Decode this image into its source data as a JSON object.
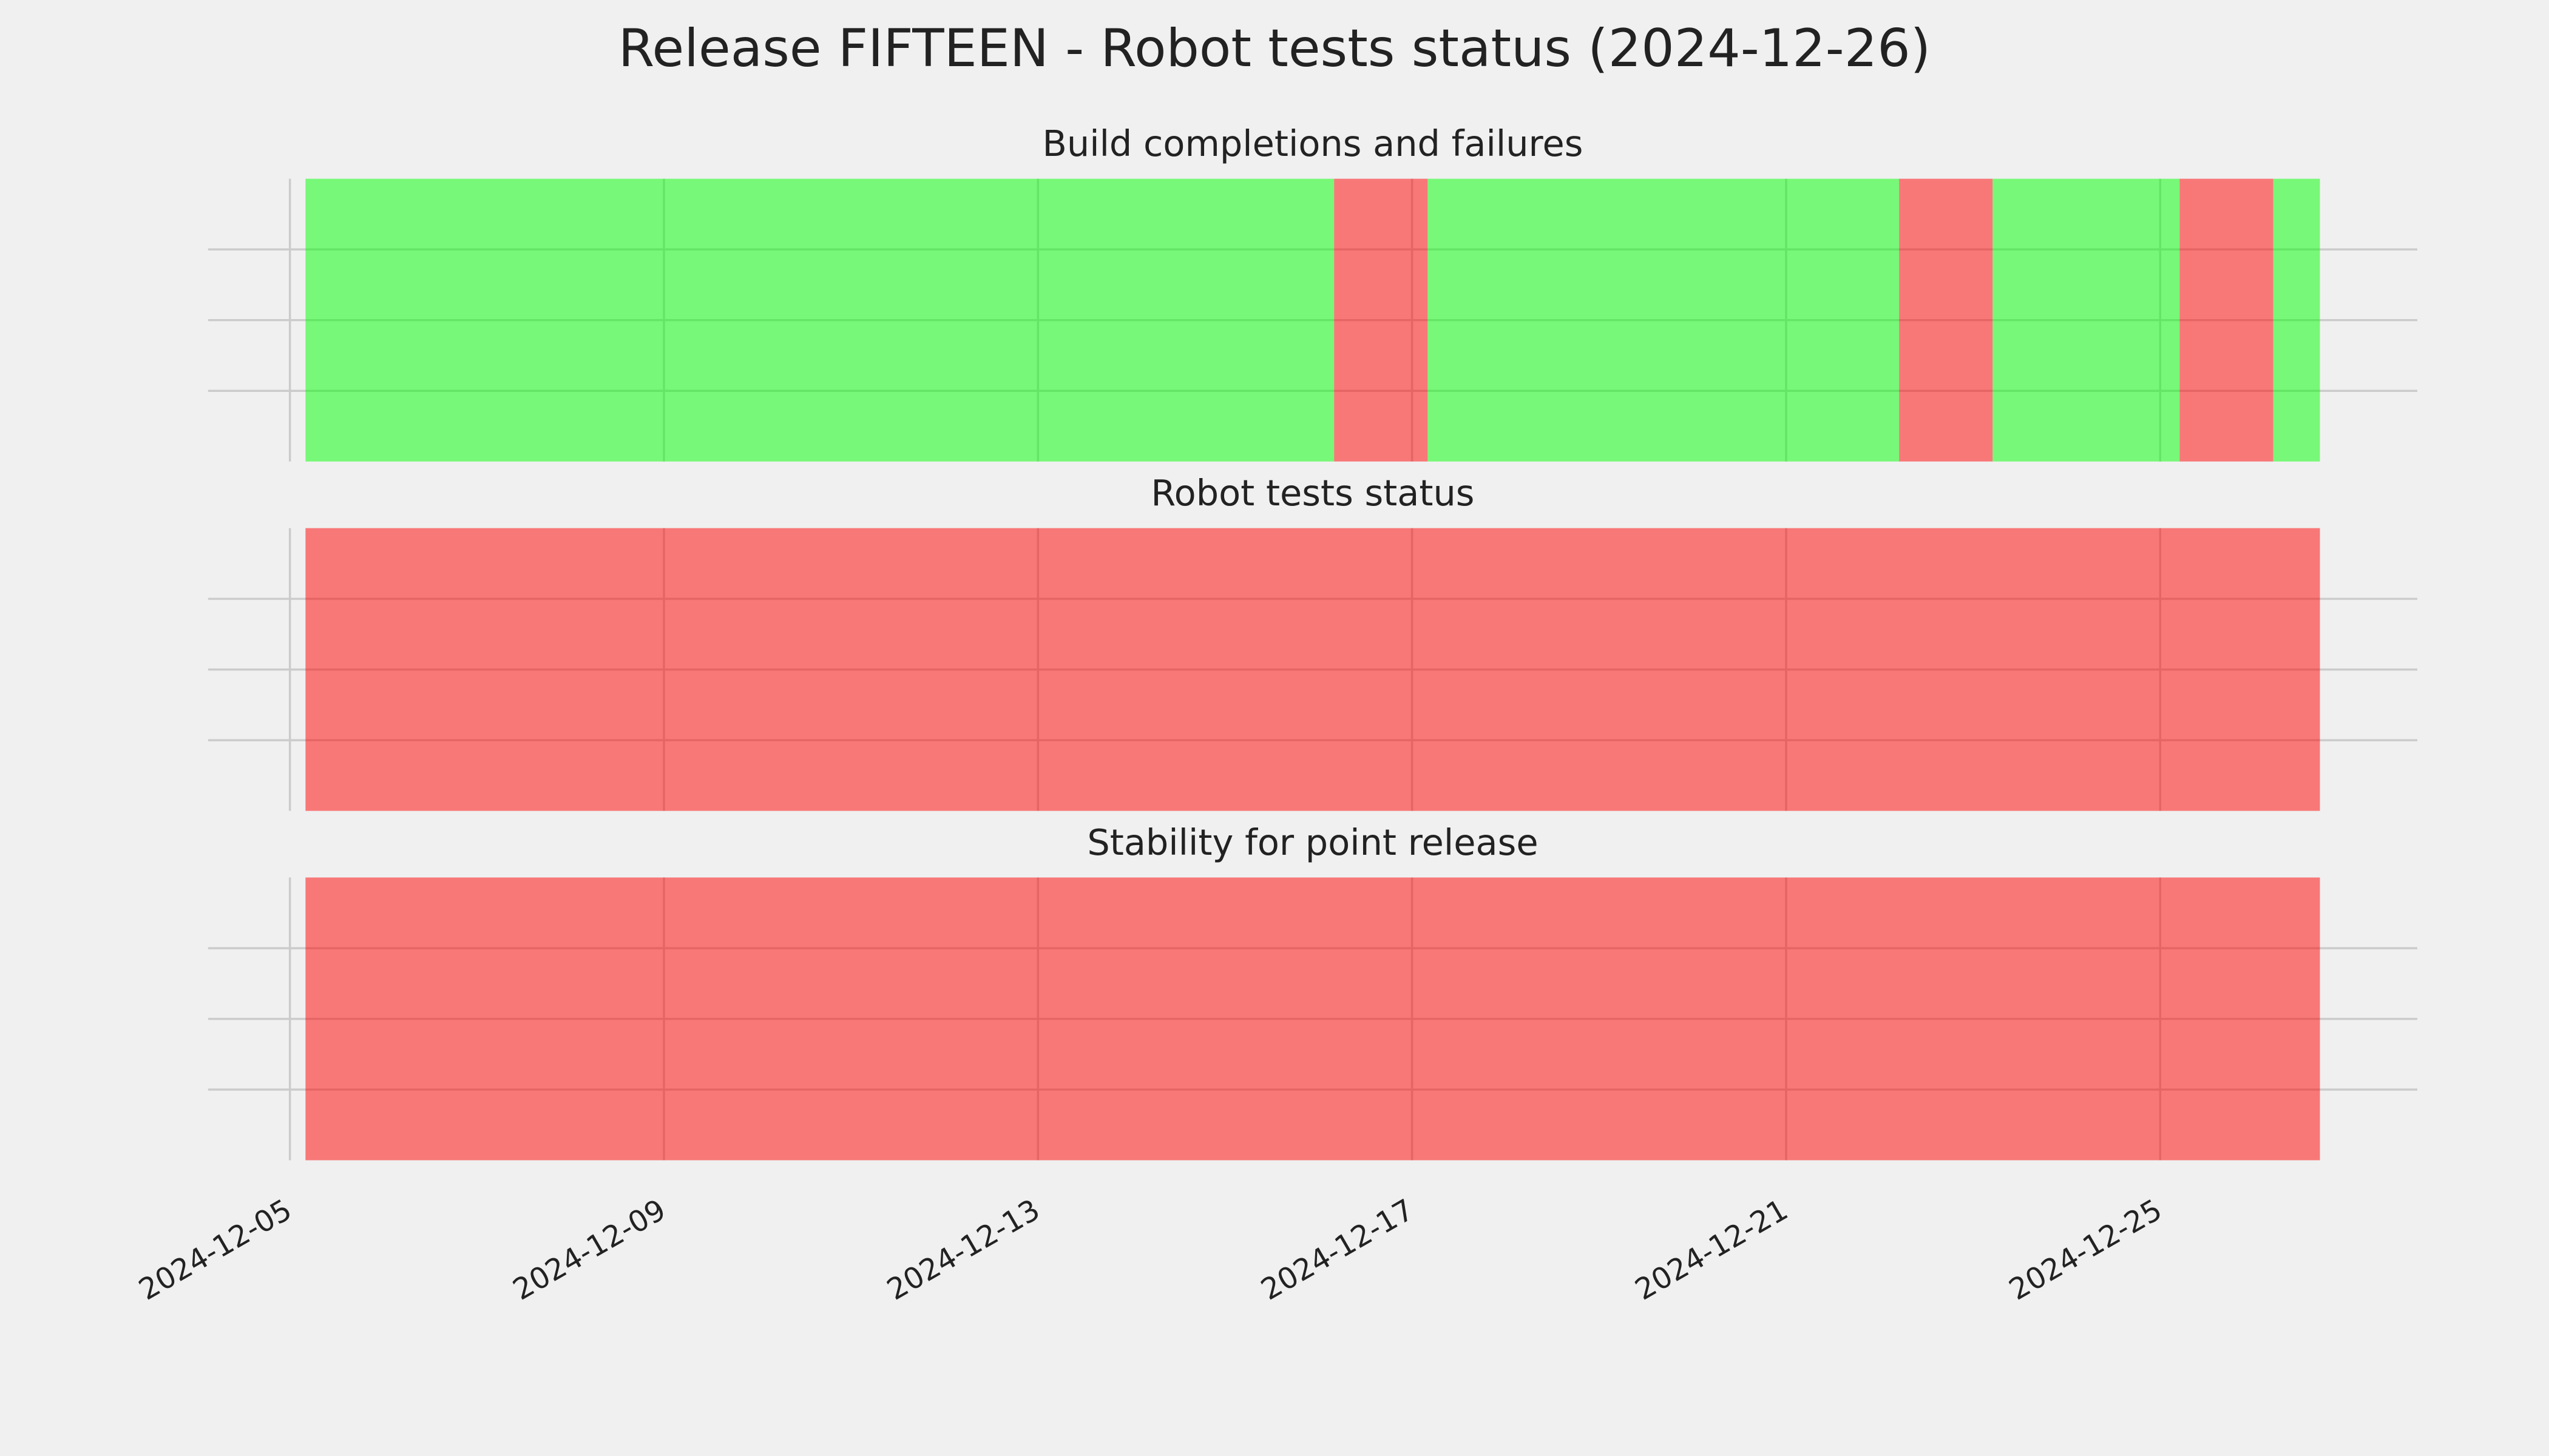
{
  "title": "Release FIFTEEN - Robot tests status (2024-12-26)",
  "chart_data": [
    {
      "type": "timeline",
      "title": "Build completions and failures",
      "xlim": [
        "2024-12-04T03:00",
        "2024-12-27T18:00"
      ],
      "xticks": [
        "2024-12-05",
        "2024-12-09",
        "2024-12-13",
        "2024-12-17",
        "2024-12-21",
        "2024-12-25"
      ],
      "ylim": [
        0,
        1
      ],
      "yticks": [
        0.25,
        0.5,
        0.75
      ],
      "grid": true,
      "alpha": 0.5,
      "spans": [
        {
          "start": "2024-12-05T04:00",
          "end": "2024-12-16T04:00",
          "color": "#00ff00"
        },
        {
          "start": "2024-12-16T04:00",
          "end": "2024-12-17T04:00",
          "color": "#ff0000"
        },
        {
          "start": "2024-12-17T04:00",
          "end": "2024-12-22T05:00",
          "color": "#00ff00"
        },
        {
          "start": "2024-12-22T05:00",
          "end": "2024-12-23T05:00",
          "color": "#ff0000"
        },
        {
          "start": "2024-12-23T05:00",
          "end": "2024-12-25T05:00",
          "color": "#00ff00"
        },
        {
          "start": "2024-12-25T05:00",
          "end": "2024-12-26T05:00",
          "color": "#ff0000"
        },
        {
          "start": "2024-12-26T05:00",
          "end": "2024-12-26T17:00",
          "color": "#00ff00"
        }
      ]
    },
    {
      "type": "timeline",
      "title": "Robot tests status",
      "xlim": [
        "2024-12-04T03:00",
        "2024-12-27T18:00"
      ],
      "xticks": [
        "2024-12-05",
        "2024-12-09",
        "2024-12-13",
        "2024-12-17",
        "2024-12-21",
        "2024-12-25"
      ],
      "ylim": [
        0,
        1
      ],
      "yticks": [
        0.25,
        0.5,
        0.75
      ],
      "grid": true,
      "alpha": 0.5,
      "spans": [
        {
          "start": "2024-12-05T04:00",
          "end": "2024-12-26T17:00",
          "color": "#ff0000"
        }
      ]
    },
    {
      "type": "timeline",
      "title": "Stability for point release",
      "xlim": [
        "2024-12-04T03:00",
        "2024-12-27T18:00"
      ],
      "xticks": [
        "2024-12-05",
        "2024-12-09",
        "2024-12-13",
        "2024-12-17",
        "2024-12-21",
        "2024-12-25"
      ],
      "ylim": [
        0,
        1
      ],
      "yticks": [
        0.25,
        0.5,
        0.75
      ],
      "grid": true,
      "alpha": 0.5,
      "show_xtick_labels": true,
      "spans": [
        {
          "start": "2024-12-05T04:00",
          "end": "2024-12-26T17:00",
          "color": "#ff0000"
        }
      ]
    }
  ]
}
